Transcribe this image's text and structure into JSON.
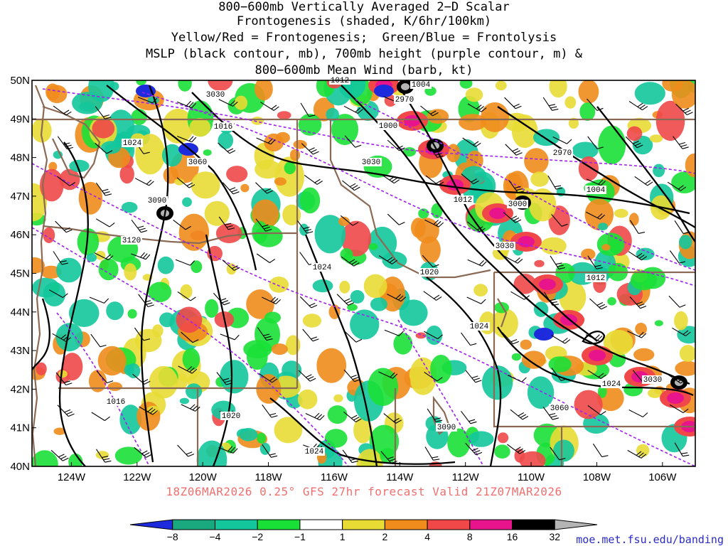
{
  "title_lines": [
    "800−600mb Vertically Averaged 2−D Scalar",
    "Frontogenesis (shaded, K/6hr/100km)",
    "Yellow/Red = Frontogenesis;  Green/Blue = Frontolysis",
    "MSLP (black contour, mb), 700mb height (purple contour, m) &",
    "800−600mb Mean Wind (barb, kt)"
  ],
  "footer": "18Z06MAR2026 0.25° GFS 27hr forecast Valid 21Z07MAR2026",
  "credit": "moe.met.fsu.edu/banding",
  "map": {
    "lat_labels": [
      "50N",
      "49N",
      "48N",
      "47N",
      "46N",
      "45N",
      "44N",
      "43N",
      "42N",
      "41N",
      "40N"
    ],
    "lon_labels": [
      "124W",
      "122W",
      "120W",
      "118W",
      "116W",
      "114W",
      "112W",
      "110W",
      "108W",
      "106W"
    ],
    "lat_range": [
      40,
      50
    ],
    "lon_range": [
      -125.2,
      -105
    ],
    "mslp_labels": [
      "1012",
      "1004",
      "1016",
      "1000",
      "1024",
      "1012",
      "1004",
      "1020",
      "1024",
      "1012",
      "1024",
      "1016",
      "1020",
      "1024",
      "1024"
    ],
    "height_labels": [
      "3030",
      "2970",
      "3060",
      "3030",
      "2970",
      "3090",
      "3000",
      "3120",
      "3030",
      "3030",
      "3060",
      "3090"
    ]
  },
  "colorbar": {
    "labels": [
      "−8",
      "−4",
      "−2",
      "−1",
      "1",
      "2",
      "4",
      "8",
      "16",
      "32"
    ],
    "colors": [
      "#1d2bdc",
      "#1aa87e",
      "#13c69c",
      "#19e036",
      "#ffffff",
      "#e8dc34",
      "#f08c1c",
      "#f04848",
      "#e8148c",
      "#000000",
      "#b4b4b4"
    ]
  },
  "colors": {
    "mslp": "#000000",
    "height": "#a020f0",
    "borders": "#8a6a55",
    "footer": "#f07070"
  }
}
